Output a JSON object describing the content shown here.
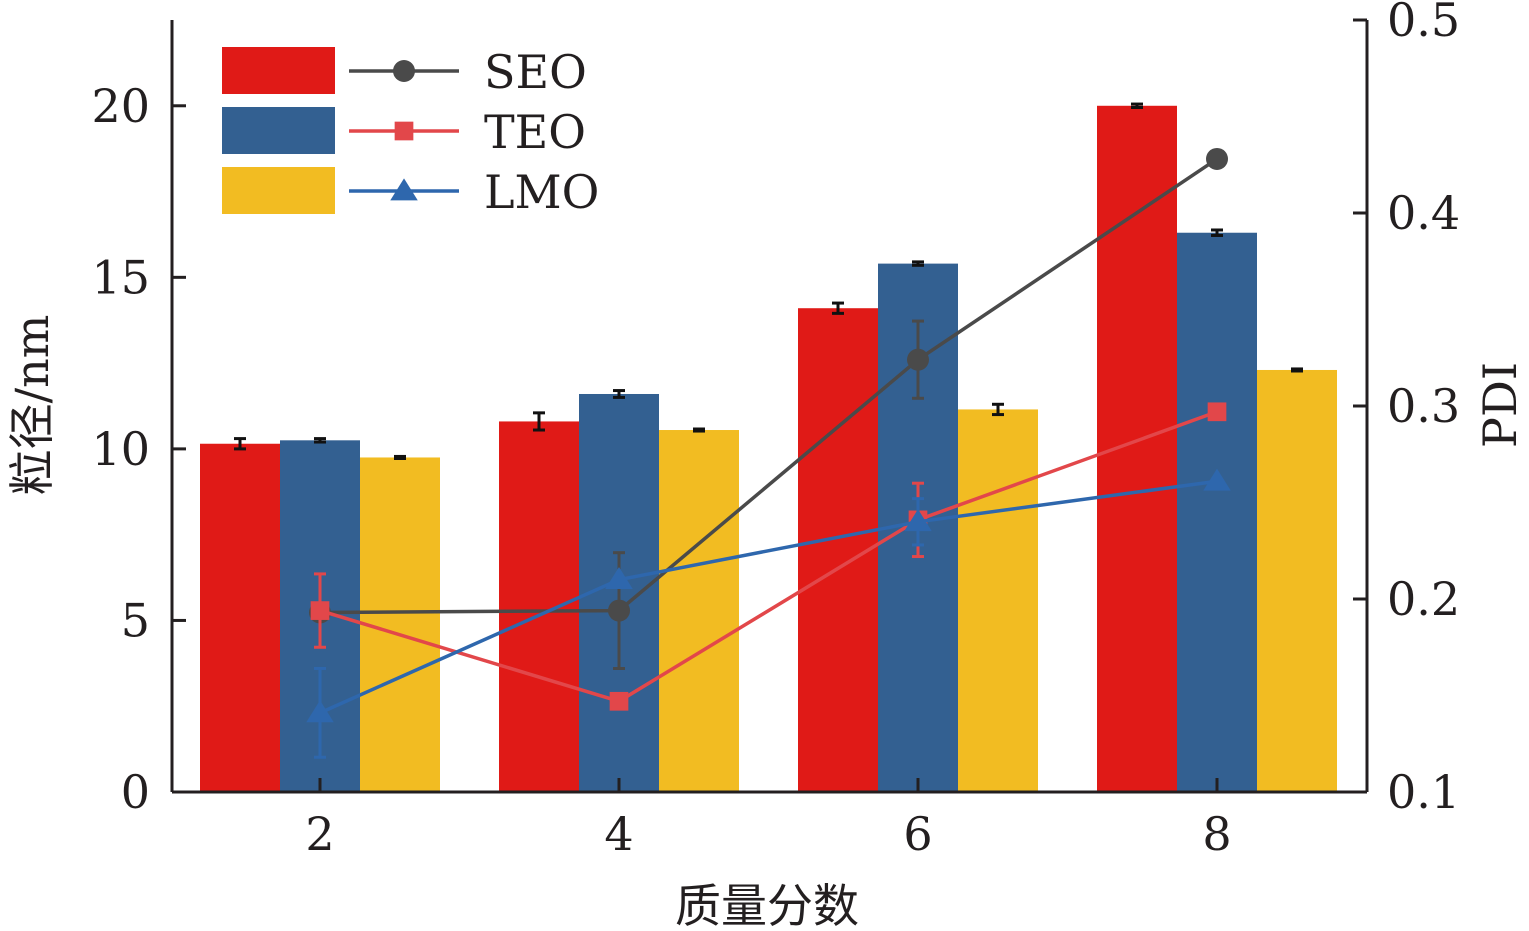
{
  "chart_data": {
    "type": "bar",
    "xlabel": "质量分数",
    "ylabel": "粒径/nm",
    "y2label": "PDI",
    "categories": [
      "2",
      "4",
      "6",
      "8"
    ],
    "ylim": [
      0,
      22.5
    ],
    "yticks": [
      "0",
      "5",
      "10",
      "15",
      "20"
    ],
    "y2lim": [
      0.1,
      0.5
    ],
    "y2ticks": [
      "0.1",
      "0.2",
      "0.3",
      "0.4",
      "0.5"
    ],
    "bar_series": [
      {
        "name": "SEO",
        "color": "#e01a17",
        "values": [
          10.15,
          10.8,
          14.1,
          20.0
        ],
        "errors": [
          0.15,
          0.25,
          0.15,
          0.05
        ]
      },
      {
        "name": "TEO",
        "color": "#336091",
        "values": [
          10.25,
          11.6,
          15.4,
          16.3
        ],
        "errors": [
          0.05,
          0.1,
          0.05,
          0.08
        ]
      },
      {
        "name": "LMO",
        "color": "#f2bc22",
        "values": [
          9.75,
          10.55,
          11.15,
          12.3
        ],
        "errors": [
          0.03,
          0.03,
          0.15,
          0.03
        ]
      }
    ],
    "line_series": [
      {
        "name": "SEO",
        "color": "#4a4a4a",
        "marker": "circle",
        "values": [
          0.193,
          0.194,
          0.324,
          0.428
        ],
        "errors": [
          0.0,
          0.03,
          0.02,
          0.0
        ]
      },
      {
        "name": "TEO",
        "color": "#e2474a",
        "marker": "square",
        "values": [
          0.194,
          0.147,
          0.241,
          0.297
        ],
        "errors": [
          0.019,
          0.0,
          0.019,
          0.0
        ]
      },
      {
        "name": "LMO",
        "color": "#2e67ad",
        "marker": "triangle",
        "values": [
          0.141,
          0.21,
          0.24,
          0.261
        ],
        "errors": [
          0.023,
          0.0,
          0.012,
          0.0
        ]
      }
    ],
    "legend_position": "top-left",
    "grid": false
  }
}
